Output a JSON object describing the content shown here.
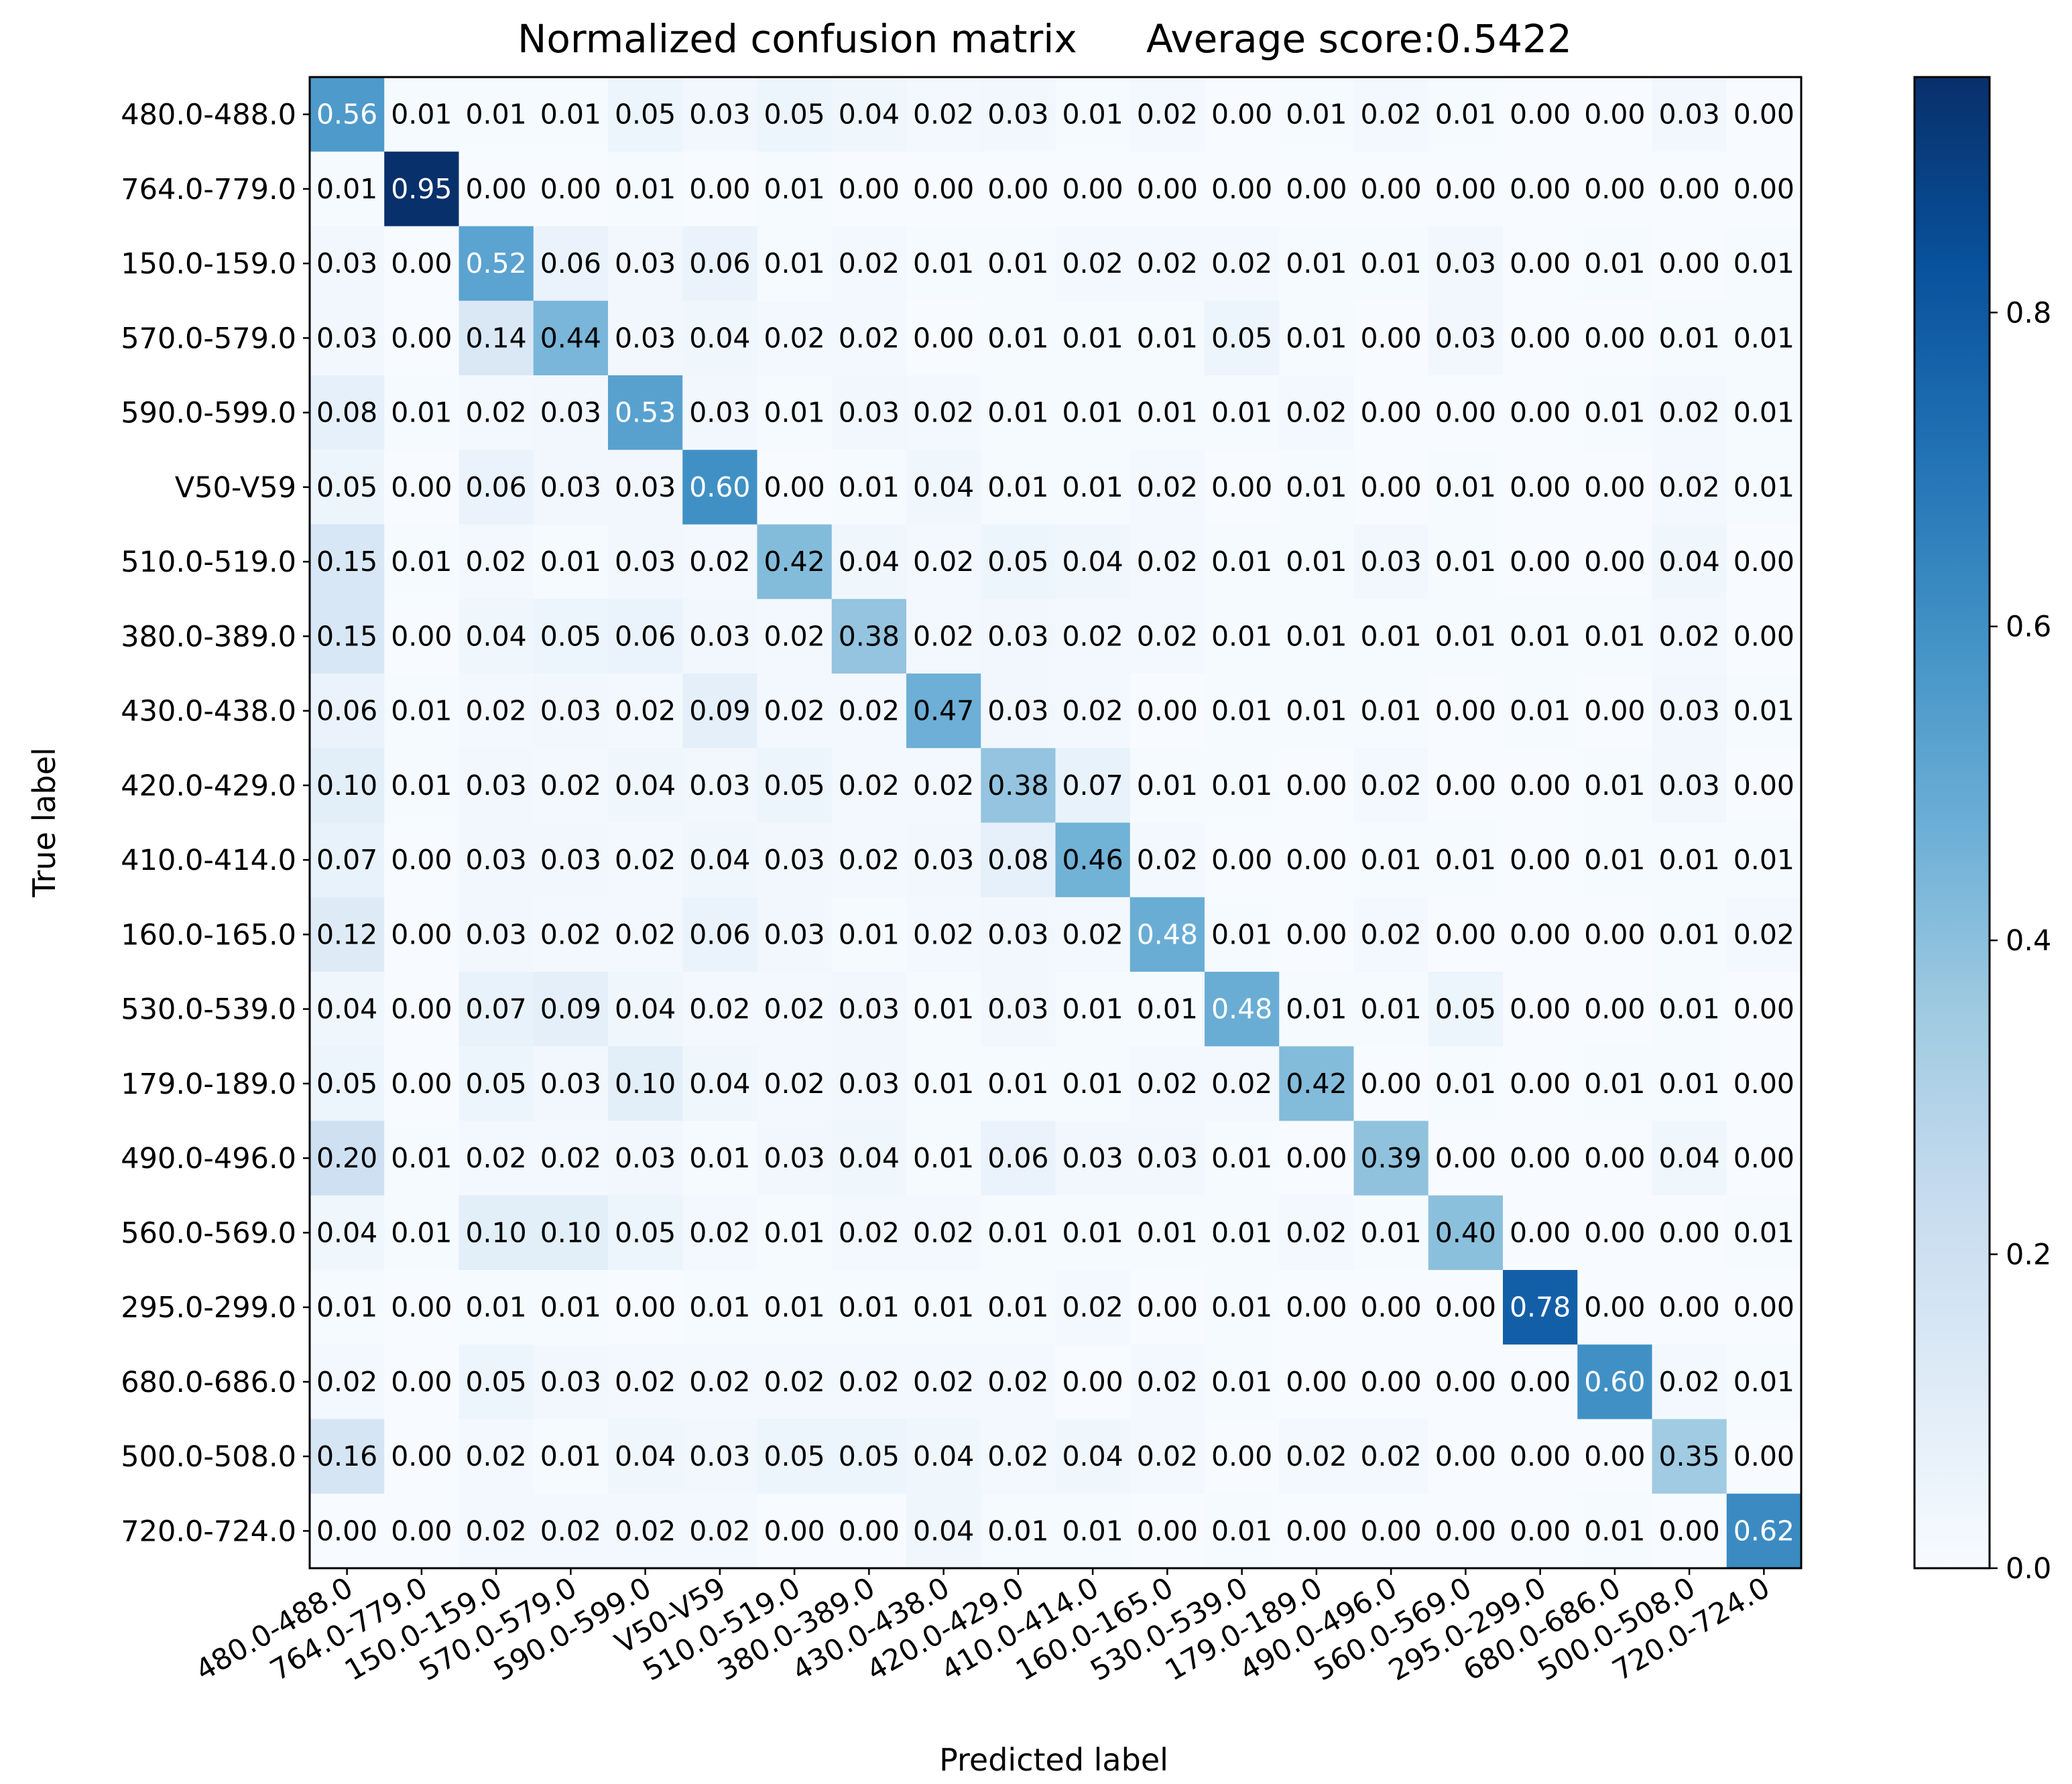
{
  "chart_data": {
    "type": "heatmap",
    "title": "Normalized confusion matrix",
    "subtitle": "Average score:0.5422",
    "xlabel": "Predicted label",
    "ylabel": "True label",
    "labels": [
      "480.0-488.0",
      "764.0-779.0",
      "150.0-159.0",
      "570.0-579.0",
      "590.0-599.0",
      "V50-V59",
      "510.0-519.0",
      "380.0-389.0",
      "430.0-438.0",
      "420.0-429.0",
      "410.0-414.0",
      "160.0-165.0",
      "530.0-539.0",
      "179.0-189.0",
      "490.0-496.0",
      "560.0-569.0",
      "295.0-299.0",
      "680.0-686.0",
      "500.0-508.0",
      "720.0-724.0"
    ],
    "matrix": [
      [
        0.56,
        0.01,
        0.01,
        0.01,
        0.05,
        0.03,
        0.05,
        0.04,
        0.02,
        0.03,
        0.01,
        0.02,
        0.0,
        0.01,
        0.02,
        0.01,
        0.0,
        0.0,
        0.03,
        0.0
      ],
      [
        0.01,
        0.95,
        0.0,
        0.0,
        0.01,
        0.0,
        0.01,
        0.0,
        0.0,
        0.0,
        0.0,
        0.0,
        0.0,
        0.0,
        0.0,
        0.0,
        0.0,
        0.0,
        0.0,
        0.0
      ],
      [
        0.03,
        0.0,
        0.52,
        0.06,
        0.03,
        0.06,
        0.01,
        0.02,
        0.01,
        0.01,
        0.02,
        0.02,
        0.02,
        0.01,
        0.01,
        0.03,
        0.0,
        0.01,
        0.0,
        0.01
      ],
      [
        0.03,
        0.0,
        0.14,
        0.44,
        0.03,
        0.04,
        0.02,
        0.02,
        0.0,
        0.01,
        0.01,
        0.01,
        0.05,
        0.01,
        0.0,
        0.03,
        0.0,
        0.0,
        0.01,
        0.01
      ],
      [
        0.08,
        0.01,
        0.02,
        0.03,
        0.53,
        0.03,
        0.01,
        0.03,
        0.02,
        0.01,
        0.01,
        0.01,
        0.01,
        0.02,
        0.0,
        0.0,
        0.0,
        0.01,
        0.02,
        0.01
      ],
      [
        0.05,
        0.0,
        0.06,
        0.03,
        0.03,
        0.6,
        0.0,
        0.01,
        0.04,
        0.01,
        0.01,
        0.02,
        0.0,
        0.01,
        0.0,
        0.01,
        0.0,
        0.0,
        0.02,
        0.01
      ],
      [
        0.15,
        0.01,
        0.02,
        0.01,
        0.03,
        0.02,
        0.42,
        0.04,
        0.02,
        0.05,
        0.04,
        0.02,
        0.01,
        0.01,
        0.03,
        0.01,
        0.0,
        0.0,
        0.04,
        0.0
      ],
      [
        0.15,
        0.0,
        0.04,
        0.05,
        0.06,
        0.03,
        0.02,
        0.38,
        0.02,
        0.03,
        0.02,
        0.02,
        0.01,
        0.01,
        0.01,
        0.01,
        0.01,
        0.01,
        0.02,
        0.0
      ],
      [
        0.06,
        0.01,
        0.02,
        0.03,
        0.02,
        0.09,
        0.02,
        0.02,
        0.47,
        0.03,
        0.02,
        0.0,
        0.01,
        0.01,
        0.01,
        0.0,
        0.01,
        0.0,
        0.03,
        0.01
      ],
      [
        0.1,
        0.01,
        0.03,
        0.02,
        0.04,
        0.03,
        0.05,
        0.02,
        0.02,
        0.38,
        0.07,
        0.01,
        0.01,
        0.0,
        0.02,
        0.0,
        0.0,
        0.01,
        0.03,
        0.0
      ],
      [
        0.07,
        0.0,
        0.03,
        0.03,
        0.02,
        0.04,
        0.03,
        0.02,
        0.03,
        0.08,
        0.46,
        0.02,
        0.0,
        0.0,
        0.01,
        0.01,
        0.0,
        0.01,
        0.01,
        0.01
      ],
      [
        0.12,
        0.0,
        0.03,
        0.02,
        0.02,
        0.06,
        0.03,
        0.01,
        0.02,
        0.03,
        0.02,
        0.48,
        0.01,
        0.0,
        0.02,
        0.0,
        0.0,
        0.0,
        0.01,
        0.02
      ],
      [
        0.04,
        0.0,
        0.07,
        0.09,
        0.04,
        0.02,
        0.02,
        0.03,
        0.01,
        0.03,
        0.01,
        0.01,
        0.48,
        0.01,
        0.01,
        0.05,
        0.0,
        0.0,
        0.01,
        0.0
      ],
      [
        0.05,
        0.0,
        0.05,
        0.03,
        0.1,
        0.04,
        0.02,
        0.03,
        0.01,
        0.01,
        0.01,
        0.02,
        0.02,
        0.42,
        0.0,
        0.01,
        0.0,
        0.01,
        0.01,
        0.0
      ],
      [
        0.2,
        0.01,
        0.02,
        0.02,
        0.03,
        0.01,
        0.03,
        0.04,
        0.01,
        0.06,
        0.03,
        0.03,
        0.01,
        0.0,
        0.39,
        0.0,
        0.0,
        0.0,
        0.04,
        0.0
      ],
      [
        0.04,
        0.01,
        0.1,
        0.1,
        0.05,
        0.02,
        0.01,
        0.02,
        0.02,
        0.01,
        0.01,
        0.01,
        0.01,
        0.02,
        0.01,
        0.4,
        0.0,
        0.0,
        0.0,
        0.01
      ],
      [
        0.01,
        0.0,
        0.01,
        0.01,
        0.0,
        0.01,
        0.01,
        0.01,
        0.01,
        0.01,
        0.02,
        0.0,
        0.01,
        0.0,
        0.0,
        0.0,
        0.78,
        0.0,
        0.0,
        0.0
      ],
      [
        0.02,
        0.0,
        0.05,
        0.03,
        0.02,
        0.02,
        0.02,
        0.02,
        0.02,
        0.02,
        0.0,
        0.02,
        0.01,
        0.0,
        0.0,
        0.0,
        0.0,
        0.6,
        0.02,
        0.01
      ],
      [
        0.16,
        0.0,
        0.02,
        0.01,
        0.04,
        0.03,
        0.05,
        0.05,
        0.04,
        0.02,
        0.04,
        0.02,
        0.0,
        0.02,
        0.02,
        0.0,
        0.0,
        0.0,
        0.35,
        0.0
      ],
      [
        0.0,
        0.0,
        0.02,
        0.02,
        0.02,
        0.02,
        0.0,
        0.0,
        0.04,
        0.01,
        0.01,
        0.0,
        0.01,
        0.0,
        0.0,
        0.0,
        0.0,
        0.01,
        0.0,
        0.62
      ]
    ],
    "color_range": [
      0.0,
      0.95
    ],
    "colormap": "Blues",
    "colorbar_ticks": [
      "0.0",
      "0.2",
      "0.4",
      "0.6",
      "0.8"
    ],
    "colorbar_tick_values": [
      0.0,
      0.2,
      0.4,
      0.6,
      0.8
    ]
  }
}
